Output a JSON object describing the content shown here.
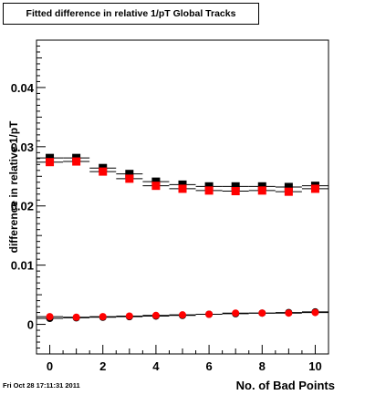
{
  "chart_data": {
    "type": "scatter",
    "title": "Fitted difference in relative 1/pT  Global Tracks",
    "xlabel": "No. of Bad Points",
    "ylabel": "difference in relative 1/pT",
    "xlim": [
      -0.5,
      10.5
    ],
    "ylim": [
      -0.005,
      0.048
    ],
    "x_ticks": [
      0,
      2,
      4,
      6,
      8,
      10
    ],
    "y_ticks": [
      0,
      0.01,
      0.02,
      0.03,
      0.04
    ],
    "x_tick_labels": [
      "0",
      "2",
      "4",
      "6",
      "8",
      "10"
    ],
    "y_tick_labels": [
      "0",
      "0.01",
      "0.02",
      "0.03",
      "0.04"
    ],
    "grid": false,
    "series": [
      {
        "marker": "square",
        "color": "#000000",
        "x": [
          0,
          1,
          2,
          3,
          4,
          5,
          6,
          7,
          8,
          9,
          10
        ],
        "y": [
          0.0281,
          0.0281,
          0.0264,
          0.0254,
          0.0241,
          0.0236,
          0.0233,
          0.0233,
          0.0233,
          0.0232,
          0.0234
        ],
        "err": [
          0.0005,
          0.0005,
          0.0005,
          0.0005,
          0.0005,
          0.0005,
          0.0005,
          0.0005,
          0.0005,
          0.0005,
          0.0005
        ]
      },
      {
        "marker": "square",
        "color": "#ff0000",
        "x": [
          0,
          1,
          2,
          3,
          4,
          5,
          6,
          7,
          8,
          9,
          10
        ],
        "y": [
          0.0274,
          0.0275,
          0.0258,
          0.0246,
          0.0234,
          0.0229,
          0.0226,
          0.0225,
          0.0226,
          0.0224,
          0.0229
        ],
        "err": [
          0.0005,
          0.0005,
          0.0005,
          0.0005,
          0.0005,
          0.0005,
          0.0005,
          0.0005,
          0.0005,
          0.0005,
          0.0005
        ]
      },
      {
        "marker": "circle",
        "color": "#000000",
        "x": [
          0,
          1,
          2,
          3,
          4,
          5,
          6,
          7,
          8,
          9,
          10
        ],
        "y": [
          0.001,
          0.0011,
          0.0012,
          0.0013,
          0.0014,
          0.0015,
          0.0017,
          0.0018,
          0.0019,
          0.002,
          0.0021
        ],
        "err": [
          0.0003,
          0.0003,
          0.0003,
          0.0003,
          0.0003,
          0.0003,
          0.0003,
          0.0003,
          0.0003,
          0.0003,
          0.0003
        ]
      },
      {
        "marker": "circle",
        "color": "#ff0000",
        "x": [
          0,
          1,
          2,
          3,
          4,
          5,
          6,
          7,
          8,
          9,
          10
        ],
        "y": [
          0.0013,
          0.0012,
          0.0013,
          0.0014,
          0.0015,
          0.0016,
          0.0017,
          0.0019,
          0.0019,
          0.0019,
          0.002
        ],
        "err": [
          0.0003,
          0.0003,
          0.0003,
          0.0003,
          0.0003,
          0.0003,
          0.0003,
          0.0003,
          0.0003,
          0.0003,
          0.0003
        ]
      }
    ]
  },
  "footer": {
    "timestamp": "Fri Oct 28 17:11:31 2011"
  }
}
